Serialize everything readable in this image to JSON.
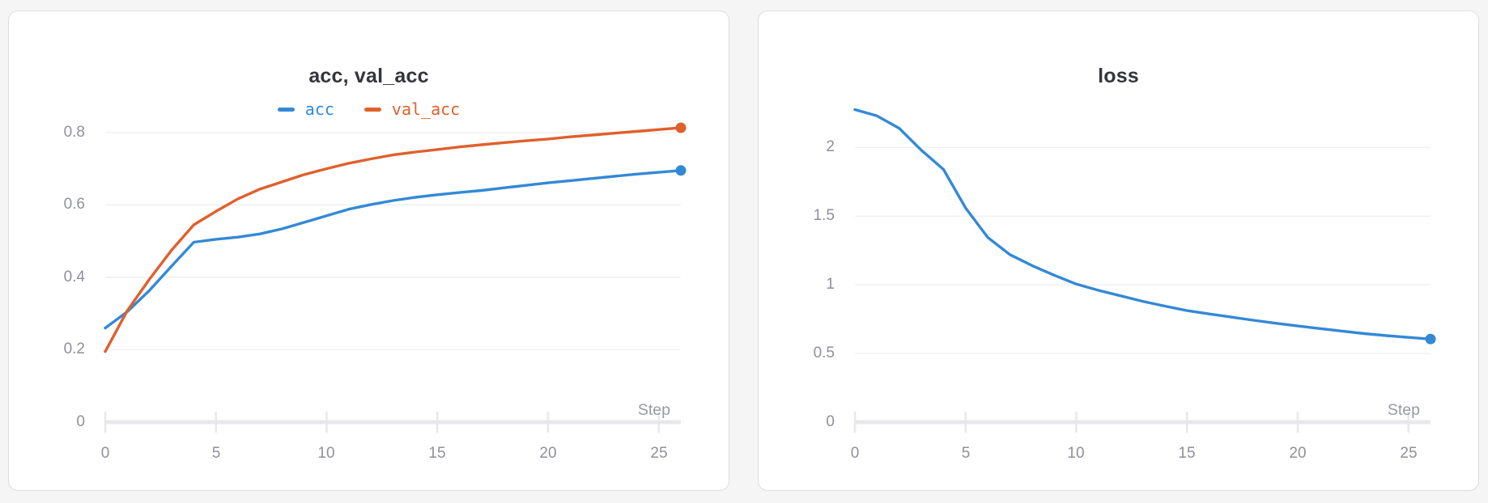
{
  "page": {
    "background": "#f5f5f6"
  },
  "x_axis_label": "Step",
  "chart_data": [
    {
      "type": "line",
      "title": "acc, val_acc",
      "xlabel": "Step",
      "legend_position": "top",
      "grid": "horizontal",
      "end_dot": true,
      "x": [
        0,
        1,
        2,
        3,
        4,
        5,
        6,
        7,
        8,
        9,
        10,
        11,
        12,
        13,
        14,
        15,
        16,
        17,
        18,
        19,
        20,
        21,
        22,
        23,
        24,
        25,
        26
      ],
      "xticks": [
        0,
        5,
        10,
        15,
        20,
        25
      ],
      "yticks": [
        0,
        0.2,
        0.4,
        0.6,
        0.8
      ],
      "ylim": [
        0,
        0.88
      ],
      "series": [
        {
          "name": "acc",
          "color": "#3389d6",
          "values": [
            0.26,
            0.305,
            0.364,
            0.431,
            0.497,
            0.505,
            0.511,
            0.52,
            0.534,
            0.552,
            0.57,
            0.588,
            0.601,
            0.612,
            0.621,
            0.628,
            0.634,
            0.64,
            0.647,
            0.654,
            0.661,
            0.667,
            0.673,
            0.679,
            0.685,
            0.69,
            0.695
          ]
        },
        {
          "name": "val_acc",
          "color": "#e0602c",
          "values": [
            0.195,
            0.308,
            0.395,
            0.475,
            0.545,
            0.582,
            0.617,
            0.644,
            0.664,
            0.684,
            0.7,
            0.715,
            0.727,
            0.738,
            0.746,
            0.753,
            0.76,
            0.766,
            0.772,
            0.777,
            0.782,
            0.788,
            0.793,
            0.798,
            0.803,
            0.808,
            0.813
          ]
        }
      ]
    },
    {
      "type": "line",
      "title": "loss",
      "xlabel": "Step",
      "legend_position": "none",
      "grid": "horizontal",
      "end_dot": true,
      "x": [
        0,
        1,
        2,
        3,
        4,
        5,
        6,
        7,
        8,
        9,
        10,
        11,
        12,
        13,
        14,
        15,
        16,
        17,
        18,
        19,
        20,
        21,
        22,
        23,
        24,
        25,
        26
      ],
      "xticks": [
        0,
        5,
        10,
        15,
        20,
        25
      ],
      "yticks": [
        0,
        0.5,
        1,
        1.5,
        2
      ],
      "ylim": [
        0,
        2.32
      ],
      "series": [
        {
          "name": "loss",
          "color": "#3389d6",
          "values": [
            2.276,
            2.23,
            2.14,
            1.98,
            1.84,
            1.56,
            1.345,
            1.22,
            1.14,
            1.07,
            1.005,
            0.96,
            0.92,
            0.88,
            0.845,
            0.812,
            0.788,
            0.765,
            0.742,
            0.72,
            0.7,
            0.681,
            0.663,
            0.645,
            0.63,
            0.617,
            0.605
          ]
        }
      ]
    }
  ],
  "style": {
    "grid_color": "#ededf0",
    "axis_color": "#e8e8eb",
    "tick_label_color": "#8f909a"
  }
}
